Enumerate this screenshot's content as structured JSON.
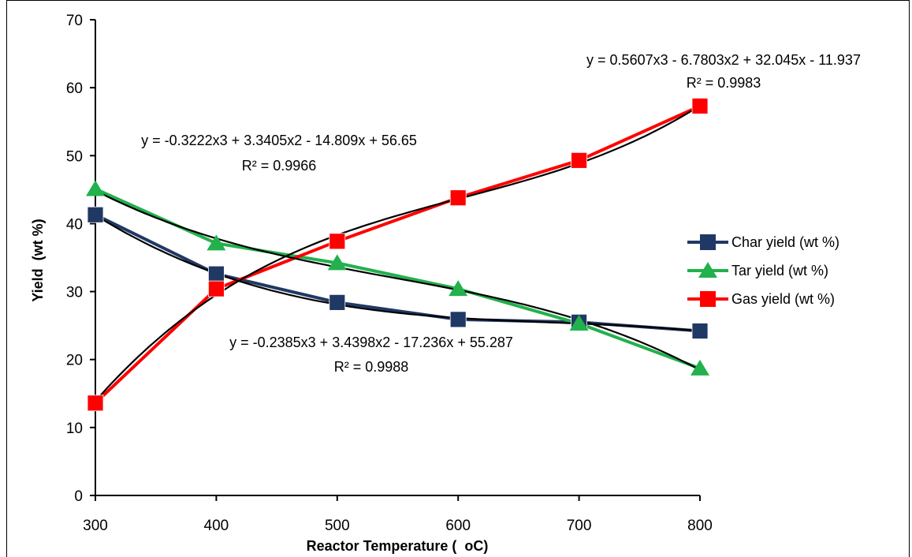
{
  "chart_data": {
    "type": "line",
    "title": "",
    "xlabel": "Reactor Temperature (  oC)",
    "ylabel": "Yield  (wt %)",
    "x": [
      300,
      400,
      500,
      600,
      700,
      800
    ],
    "xlim": [
      300,
      800
    ],
    "ylim": [
      0,
      70
    ],
    "x_ticks": [
      "300",
      "400",
      "500",
      "600",
      "700",
      "800"
    ],
    "y_ticks": [
      "0",
      "10",
      "20",
      "30",
      "40",
      "50",
      "60",
      "70"
    ],
    "grid": false,
    "legend_position": "right",
    "series": [
      {
        "name": "Char yield (wt %)",
        "color": "#203864",
        "marker": "square",
        "values": [
          41.3,
          32.6,
          28.4,
          25.9,
          25.5,
          24.2
        ]
      },
      {
        "name": "Tar yield (wt %)",
        "color": "#22B14C",
        "marker": "triangle",
        "values": [
          45.1,
          37.1,
          34.2,
          30.4,
          25.3,
          18.7
        ]
      },
      {
        "name": "Gas yield (wt %)",
        "color": "#FF0000",
        "marker": "square",
        "values": [
          13.6,
          30.4,
          37.4,
          43.8,
          49.3,
          57.3
        ]
      }
    ],
    "trendlines": [
      {
        "series": "Char yield (wt %)",
        "coefficients": [
          -0.2385,
          3.4398,
          -17.236,
          55.287
        ],
        "equation": "y = -0.2385x3 + 3.4398x2 - 17.236x + 55.287",
        "r2": "R² = 0.9988"
      },
      {
        "series": "Tar yield (wt %)",
        "coefficients": [
          -0.3222,
          3.3405,
          -14.809,
          56.65
        ],
        "equation": "y = -0.3222x3 + 3.3405x2 - 14.809x + 56.65",
        "r2": "R² = 0.9966"
      },
      {
        "series": "Gas yield (wt %)",
        "coefficients": [
          0.5607,
          -6.7803,
          32.045,
          -11.937
        ],
        "equation": "y = 0.5607x3 - 6.7803x2 + 32.045x - 11.937",
        "r2": "R² = 0.9983"
      }
    ]
  }
}
